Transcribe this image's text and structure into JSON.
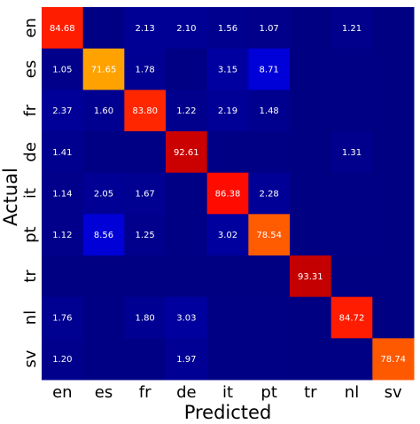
{
  "chart_data": {
    "type": "heatmap",
    "xlabel": "Predicted",
    "ylabel": "Actual",
    "x_categories": [
      "en",
      "es",
      "fr",
      "de",
      "it",
      "pt",
      "tr",
      "nl",
      "sv"
    ],
    "y_categories": [
      "en",
      "es",
      "fr",
      "de",
      "it",
      "pt",
      "tr",
      "nl",
      "sv"
    ],
    "value_range": [
      0,
      100
    ],
    "colormap": "jet",
    "values": [
      [
        84.68,
        0.4,
        2.13,
        2.1,
        1.56,
        1.07,
        0.3,
        1.21,
        0.3
      ],
      [
        1.05,
        71.65,
        1.78,
        0.5,
        3.15,
        8.71,
        0.3,
        0.4,
        0.3
      ],
      [
        2.37,
        1.6,
        83.8,
        1.22,
        2.19,
        1.48,
        0.3,
        0.4,
        0.3
      ],
      [
        1.41,
        0.5,
        0.5,
        92.61,
        0.5,
        0.5,
        0.3,
        1.31,
        0.3
      ],
      [
        1.14,
        2.05,
        1.67,
        0.5,
        86.38,
        2.28,
        0.3,
        0.4,
        0.3
      ],
      [
        1.12,
        8.56,
        1.25,
        0.5,
        3.02,
        78.54,
        0.3,
        0.4,
        0.3
      ],
      [
        0.3,
        0.3,
        0.3,
        0.3,
        0.3,
        0.3,
        93.31,
        0.3,
        0.3
      ],
      [
        1.76,
        0.5,
        1.8,
        3.03,
        0.5,
        0.4,
        0.3,
        84.72,
        0.3
      ],
      [
        1.2,
        0.5,
        0.5,
        1.97,
        0.5,
        0.4,
        0.3,
        0.4,
        78.74
      ]
    ],
    "labels": [
      [
        "84.68",
        "",
        "2.13",
        "2.10",
        "1.56",
        "1.07",
        "",
        "1.21",
        ""
      ],
      [
        "1.05",
        "71.65",
        "1.78",
        "",
        "3.15",
        "8.71",
        "",
        "",
        ""
      ],
      [
        "2.37",
        "1.60",
        "83.80",
        "1.22",
        "2.19",
        "1.48",
        "",
        "",
        ""
      ],
      [
        "1.41",
        "",
        "",
        "92.61",
        "",
        "",
        "",
        "1.31",
        ""
      ],
      [
        "1.14",
        "2.05",
        "1.67",
        "",
        "86.38",
        "2.28",
        "",
        "",
        ""
      ],
      [
        "1.12",
        "8.56",
        "1.25",
        "",
        "3.02",
        "78.54",
        "",
        "",
        ""
      ],
      [
        "",
        "",
        "",
        "",
        "",
        "",
        "93.31",
        "",
        ""
      ],
      [
        "1.76",
        "",
        "1.80",
        "3.03",
        "",
        "",
        "",
        "84.72",
        ""
      ],
      [
        "1.20",
        "",
        "",
        "1.97",
        "",
        "",
        "",
        "",
        "78.74"
      ]
    ]
  }
}
